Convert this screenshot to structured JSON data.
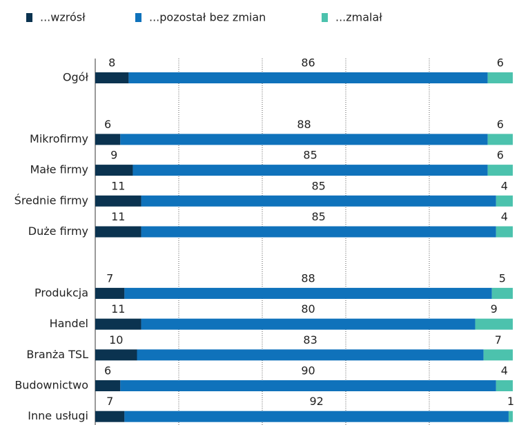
{
  "chart_data": {
    "type": "stacked-bar-horizontal",
    "categories": [
      "Ogół",
      null,
      "Mikrofirmy",
      "Małe firmy",
      "Średnie firmy",
      "Duże firmy",
      null,
      "Produkcja",
      "Handel",
      "Branża TSL",
      "Budownictwo",
      "Inne usługi"
    ],
    "series": [
      {
        "name": "...wzrósł",
        "color": "#0b3350",
        "values": [
          8,
          null,
          6,
          9,
          11,
          11,
          null,
          7,
          11,
          10,
          6,
          7
        ]
      },
      {
        "name": "...pozostał bez zmian",
        "color": "#0f72bb",
        "values": [
          86,
          null,
          88,
          85,
          85,
          85,
          null,
          88,
          80,
          83,
          90,
          92
        ]
      },
      {
        "name": "...zmalał",
        "color": "#4cc2ad",
        "values": [
          6,
          null,
          6,
          6,
          4,
          4,
          null,
          5,
          9,
          7,
          4,
          1
        ]
      }
    ],
    "xlim": [
      0,
      100
    ],
    "xticks": [
      0,
      20,
      40,
      60,
      80,
      100
    ],
    "grid": true,
    "legend": "top"
  }
}
